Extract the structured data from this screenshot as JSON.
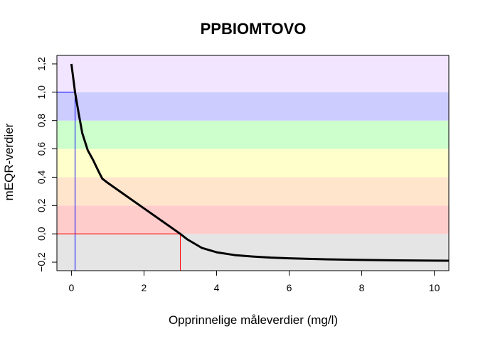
{
  "chart_data": {
    "type": "line",
    "title": "PPBIOMTOVO",
    "xlabel": "Opprinnelige måleverdier (mg/l)",
    "ylabel": "mEQR-verdier",
    "xlim": [
      -0.4,
      10.4
    ],
    "ylim": [
      -0.26,
      1.26
    ],
    "x_ticks": [
      0,
      2,
      4,
      6,
      8,
      10
    ],
    "x_tick_labels": [
      "0",
      "2",
      "4",
      "6",
      "8",
      "10"
    ],
    "y_ticks": [
      -0.2,
      0.0,
      0.2,
      0.4,
      0.6,
      0.8,
      1.0,
      1.2
    ],
    "y_tick_labels": [
      "−0,2",
      "0,0",
      "0,2",
      "0,4",
      "0,6",
      "0,8",
      "1,0",
      "1,2"
    ],
    "bands": [
      {
        "from": -0.26,
        "to": 0.0,
        "color": "#e5e5e5"
      },
      {
        "from": 0.0,
        "to": 0.2,
        "color": "#ffcccc"
      },
      {
        "from": 0.2,
        "to": 0.4,
        "color": "#ffe5cc"
      },
      {
        "from": 0.4,
        "to": 0.6,
        "color": "#ffffcc"
      },
      {
        "from": 0.6,
        "to": 0.8,
        "color": "#ccffcc"
      },
      {
        "from": 0.8,
        "to": 1.0,
        "color": "#ccccff"
      },
      {
        "from": 1.0,
        "to": 1.26,
        "color": "#f2e5ff"
      }
    ],
    "series": [
      {
        "color": "#000000",
        "x": [
          0,
          0.1,
          0.2,
          0.3,
          0.45,
          0.6,
          0.75,
          0.85,
          1.0,
          1.5,
          2.0,
          2.5,
          3.0,
          3.2,
          3.4,
          3.6,
          3.8,
          4.0,
          4.5,
          5.0,
          5.5,
          6.0,
          7.0,
          8.0,
          9.0,
          10.0,
          10.4
        ],
        "y": [
          1.2,
          1.0,
          0.85,
          0.71,
          0.59,
          0.52,
          0.44,
          0.39,
          0.36,
          0.27,
          0.18,
          0.09,
          0.0,
          -0.04,
          -0.07,
          -0.1,
          -0.115,
          -0.13,
          -0.15,
          -0.16,
          -0.168,
          -0.173,
          -0.18,
          -0.184,
          -0.187,
          -0.189,
          -0.19
        ]
      }
    ],
    "reference_lines": [
      {
        "color": "#0000ff",
        "x": 0.1,
        "y": 1.0
      },
      {
        "color": "#ff0000",
        "x": 3.0,
        "y": 0.0
      }
    ]
  }
}
